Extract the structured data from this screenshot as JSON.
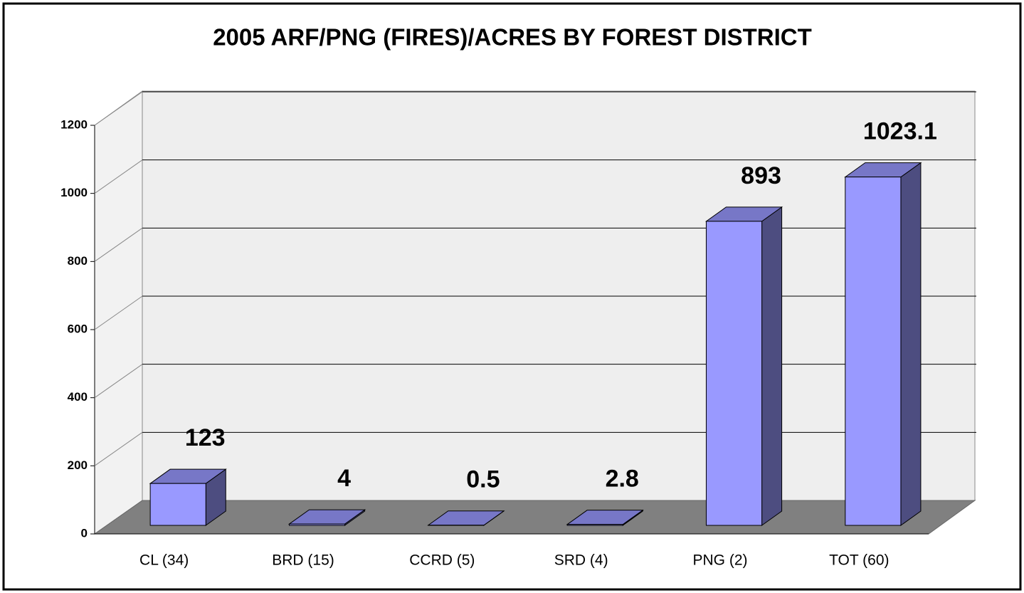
{
  "chart_data": {
    "type": "bar3d",
    "title": "2005 ARF/PNG (FIRES)/ACRES BY FOREST DISTRICT",
    "categories": [
      "CL (34)",
      "BRD (15)",
      "CCRD (5)",
      "SRD (4)",
      "PNG (2)",
      "TOT (60)"
    ],
    "values": [
      123,
      4,
      0.5,
      2.8,
      893,
      1023.1
    ],
    "color": "#9999ff",
    "ylim": [
      0,
      1200
    ],
    "yticks": [
      0,
      200,
      400,
      600,
      800,
      1000,
      1200
    ],
    "grid": true
  }
}
